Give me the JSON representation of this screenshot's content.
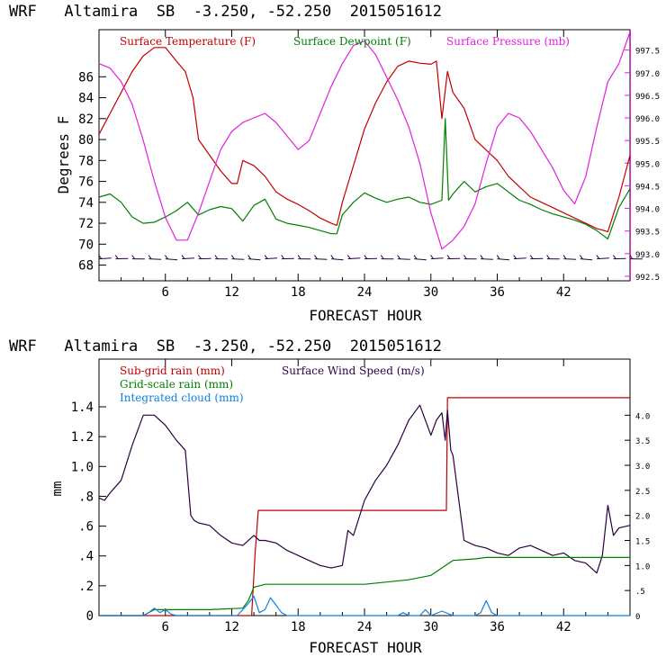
{
  "chart_data": [
    {
      "type": "line",
      "title": "WRF   Altamira  SB  -3.250, -52.250  2015051612",
      "xlabel": "FORECAST HOUR",
      "ylabel": "Degrees F",
      "xlim": [
        0,
        48
      ],
      "ylim": [
        66.5,
        90.5
      ],
      "y2lim": [
        992.4,
        997.95
      ],
      "xticks": [
        6,
        12,
        18,
        24,
        30,
        36,
        42
      ],
      "yticks": [
        68,
        70,
        72,
        74,
        76,
        78,
        80,
        82,
        84,
        86
      ],
      "y2ticks": [
        992.5,
        993.0,
        993.5,
        994.0,
        994.5,
        995.0,
        995.5,
        996.0,
        996.5,
        997.0,
        997.5
      ],
      "xtick_labels": [
        "6",
        "12",
        "18",
        "24",
        "30",
        "36",
        "42"
      ],
      "ytick_labels": [
        "68",
        "70",
        "72",
        "74",
        "76",
        "78",
        "80",
        "82",
        "84",
        "86"
      ],
      "y2tick_labels": [
        "992.5",
        "993.0",
        "993.5",
        "994.0",
        "994.5",
        "995.0",
        "995.5",
        "996.0",
        "996.5",
        "997.0",
        "997.5"
      ],
      "legend": [
        "Surface Temperature (F)",
        "Surface Dewpoint (F)",
        "Surface Pressure (mb)"
      ],
      "series": [
        {
          "name": "Surface Temperature (F)",
          "color": "#c00000",
          "axis": "left",
          "x": [
            0,
            1,
            2,
            3,
            4,
            5,
            6,
            7,
            7.8,
            8.5,
            9,
            10,
            11,
            12,
            12.5,
            13,
            14,
            15,
            16,
            17,
            18,
            19,
            20,
            21,
            21.5,
            22,
            23,
            24,
            25,
            26,
            27,
            28,
            29,
            30,
            30.5,
            31,
            31.5,
            32,
            33,
            34,
            35,
            36,
            37,
            38,
            39,
            40,
            41,
            42,
            43,
            44,
            45,
            46,
            47,
            48
          ],
          "y": [
            80.5,
            82.5,
            84.5,
            86.5,
            88,
            88.8,
            88.8,
            87.5,
            86.5,
            84,
            80,
            78.5,
            77,
            75.8,
            75.8,
            78,
            77.5,
            76.5,
            75,
            74.3,
            73.8,
            73.2,
            72.5,
            72,
            71.8,
            74,
            77.5,
            81,
            83.5,
            85.5,
            87,
            87.5,
            87.3,
            87.2,
            87.5,
            82,
            86.5,
            84.5,
            83,
            80,
            79,
            78,
            76.5,
            75.5,
            74.5,
            74,
            73.5,
            73,
            72.5,
            72,
            71.5,
            71.2,
            74.5,
            78.5
          ]
        },
        {
          "name": "Surface Dewpoint (F)",
          "color": "#008000",
          "axis": "left",
          "x": [
            0,
            1,
            2,
            3,
            4,
            5,
            6,
            7,
            8,
            9,
            10,
            11,
            12,
            13,
            14,
            15,
            16,
            17,
            18,
            19,
            20,
            21,
            21.5,
            22,
            23,
            24,
            25,
            26,
            27,
            28,
            29,
            30,
            31,
            31.3,
            31.6,
            32,
            33,
            34,
            35,
            36,
            37,
            38,
            39,
            40,
            41,
            42,
            43,
            44,
            45,
            46,
            47,
            48
          ],
          "y": [
            74.5,
            74.8,
            74,
            72.6,
            72,
            72.1,
            72.6,
            73.2,
            74,
            72.8,
            73.3,
            73.6,
            73.4,
            72.2,
            73.7,
            74.3,
            72.4,
            72,
            71.8,
            71.6,
            71.3,
            71,
            71,
            72.8,
            74,
            74.9,
            74.4,
            74,
            74.3,
            74.5,
            74,
            73.8,
            74.2,
            82,
            74.2,
            74.8,
            76,
            75,
            75.5,
            75.8,
            75,
            74.2,
            73.8,
            73.3,
            72.9,
            72.6,
            72.3,
            71.9,
            71.3,
            70.5,
            73.5,
            75.3
          ]
        },
        {
          "name": "Surface Pressure (mb)",
          "color": "#e020e0",
          "axis": "right",
          "x": [
            0,
            1,
            2,
            3,
            4,
            5,
            6,
            7,
            8,
            9,
            10,
            11,
            12,
            13,
            14,
            15,
            16,
            17,
            18,
            19,
            20,
            21,
            22,
            23,
            24,
            25,
            26,
            27,
            28,
            29,
            30,
            31,
            32,
            33,
            34,
            35,
            36,
            37,
            38,
            39,
            40,
            41,
            42,
            43,
            44,
            45,
            46,
            47,
            48
          ],
          "y": [
            997.2,
            997.1,
            996.8,
            996.3,
            995.5,
            994.6,
            993.8,
            993.3,
            993.3,
            993.9,
            994.6,
            995.3,
            995.7,
            995.9,
            996,
            996.1,
            995.9,
            995.6,
            995.3,
            995.5,
            996.1,
            996.7,
            997.2,
            997.6,
            997.7,
            997.4,
            996.9,
            996.4,
            995.8,
            995,
            993.9,
            993.1,
            993.3,
            993.6,
            994.1,
            995,
            995.8,
            996.1,
            996,
            995.7,
            995.3,
            994.9,
            994.4,
            994.1,
            994.7,
            995.8,
            996.8,
            997.2,
            997.9
          ]
        }
      ],
      "wind_barbs": {
        "hours": [
          0,
          1.5,
          3,
          4.5,
          6,
          7.5,
          9,
          10.5,
          12,
          13.5,
          15,
          16.5,
          18,
          19.5,
          21,
          22.5,
          24,
          25.5,
          27,
          28.5,
          30,
          31.5,
          33,
          34.5,
          36,
          37.5,
          39,
          40.5,
          42,
          43.5,
          45,
          46.5,
          48
        ]
      }
    },
    {
      "type": "line",
      "title": "WRF   Altamira  SB  -3.250, -52.250  2015051612",
      "xlabel": "FORECAST HOUR",
      "ylabel": "mm",
      "xlim": [
        0,
        48
      ],
      "ylim": [
        0,
        1.72
      ],
      "y2lim": [
        0,
        5.12
      ],
      "xticks": [
        6,
        12,
        18,
        24,
        30,
        36,
        42
      ],
      "yticks": [
        0,
        0.2,
        0.4,
        0.6,
        0.8,
        1.0,
        1.2,
        1.4
      ],
      "y2ticks": [
        0,
        0.5,
        1.0,
        1.5,
        2.0,
        2.5,
        3.0,
        3.5,
        4.0
      ],
      "xtick_labels": [
        "6",
        "12",
        "18",
        "24",
        "30",
        "36",
        "42"
      ],
      "ytick_labels": [
        "0",
        ".2",
        ".4",
        ".6",
        ".8",
        "1.0",
        "1.2",
        "1.4"
      ],
      "y2tick_labels": [
        "0",
        ".5",
        "1.0",
        "1.5",
        "2.0",
        "2.5",
        "3.0",
        "3.5",
        "4.0"
      ],
      "legend": [
        "Sub-grid rain (mm)",
        "Surface Wind Speed (m/s)",
        "Grid-scale rain (mm)",
        "Integrated cloud (mm)"
      ],
      "series": [
        {
          "name": "Sub-grid rain (mm)",
          "color": "#c00000",
          "axis": "right",
          "x": [
            0,
            13.8,
            14.1,
            14.4,
            31.4,
            31.5,
            48
          ],
          "y": [
            0,
            0,
            1.2,
            2.1,
            2.1,
            4.35,
            4.35
          ]
        },
        {
          "name": "Surface Wind Speed (m/s)",
          "color": "#2a0040",
          "axis": "right",
          "x": [
            0,
            0.5,
            1,
            2,
            3,
            4,
            5,
            6,
            7,
            7.8,
            8.3,
            8.6,
            9,
            10,
            11,
            12,
            13,
            14,
            14.5,
            15,
            16,
            17,
            18,
            19,
            20,
            21,
            22,
            22.5,
            23,
            24,
            25,
            26,
            27,
            28,
            29,
            30,
            30.5,
            31,
            31.3,
            31.5,
            31.8,
            32,
            33,
            34,
            35,
            36,
            37,
            38,
            39,
            40,
            41,
            42,
            43,
            44,
            45,
            45.5,
            46,
            46.5,
            47,
            48
          ],
          "y": [
            2.35,
            2.3,
            2.45,
            2.7,
            3.4,
            4.0,
            4.0,
            3.8,
            3.5,
            3.3,
            2.0,
            1.9,
            1.85,
            1.8,
            1.6,
            1.45,
            1.4,
            1.6,
            1.5,
            1.5,
            1.45,
            1.3,
            1.2,
            1.1,
            1.0,
            0.95,
            1.0,
            1.7,
            1.6,
            2.3,
            2.7,
            3.0,
            3.4,
            3.9,
            4.2,
            3.6,
            3.9,
            4.05,
            3.5,
            4.1,
            3.3,
            3.2,
            1.5,
            1.4,
            1.35,
            1.25,
            1.2,
            1.35,
            1.4,
            1.3,
            1.2,
            1.25,
            1.1,
            1.05,
            0.85,
            1.2,
            2.2,
            1.6,
            1.75,
            1.8
          ]
        },
        {
          "name": "Grid-scale rain (mm)",
          "color": "#008000",
          "axis": "left",
          "x": [
            0,
            4,
            5,
            10,
            13,
            13.5,
            14,
            14.5,
            15,
            24,
            28,
            30,
            31,
            32,
            34,
            35,
            48
          ],
          "y": [
            0,
            0,
            0.04,
            0.04,
            0.05,
            0.1,
            0.19,
            0.2,
            0.21,
            0.21,
            0.24,
            0.27,
            0.32,
            0.37,
            0.38,
            0.39,
            0.39
          ]
        },
        {
          "name": "Integrated cloud (mm)",
          "color": "#1080e0",
          "axis": "left",
          "x": [
            0,
            4,
            4.5,
            5,
            5.5,
            6,
            6.5,
            7,
            12.5,
            13.5,
            14,
            14.5,
            15,
            15.5,
            16,
            16.5,
            17,
            27,
            27.5,
            28,
            29,
            29.5,
            30,
            31,
            32,
            33,
            34,
            34.5,
            35,
            35.5,
            36,
            48
          ],
          "y": [
            0,
            0,
            0.02,
            0.05,
            0.02,
            0.04,
            0.01,
            0,
            0,
            0.08,
            0.13,
            0.02,
            0.04,
            0.12,
            0.07,
            0.02,
            0,
            0,
            0.02,
            0,
            0,
            0.04,
            0,
            0.03,
            0,
            0,
            0,
            0.02,
            0.1,
            0.02,
            0,
            0
          ]
        }
      ]
    }
  ]
}
